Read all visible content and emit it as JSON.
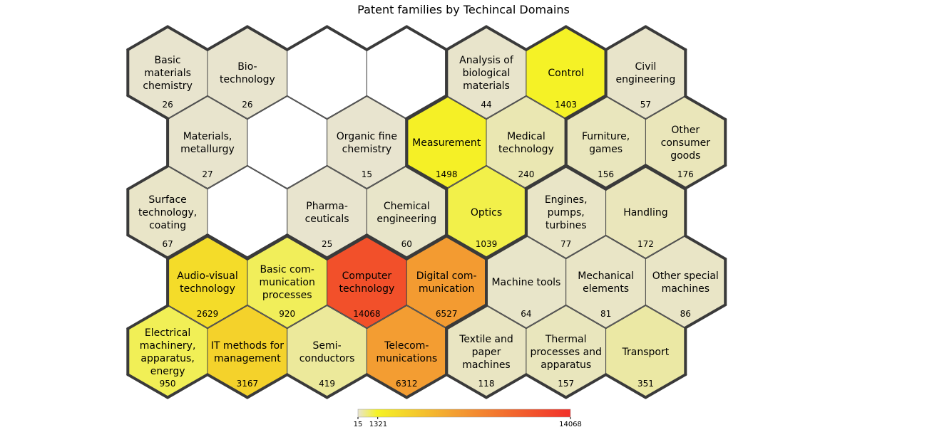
{
  "chart_data": {
    "type": "heatmap",
    "title": "Patent families by Techincal Domains",
    "color_scale": {
      "min": 15,
      "max": 14068,
      "ticks": [
        15,
        1321,
        14068
      ],
      "colors": [
        "#e8e4cf",
        "#f5f326",
        "#f2502a"
      ]
    },
    "cells": [
      {
        "row": 0,
        "col": 0,
        "lines": [
          "Basic",
          "materials",
          "chemistry"
        ],
        "value": 26,
        "group": 1
      },
      {
        "row": 0,
        "col": 1,
        "lines": [
          "Bio-",
          "technology"
        ],
        "value": 26,
        "group": 1
      },
      {
        "row": 0,
        "col": 2,
        "lines": [],
        "value": null,
        "group": 1
      },
      {
        "row": 0,
        "col": 3,
        "lines": [],
        "value": null,
        "group": 1
      },
      {
        "row": 0,
        "col": 4,
        "lines": [
          "Analysis of",
          "biological",
          "materials"
        ],
        "value": 44,
        "group": 2
      },
      {
        "row": 0,
        "col": 5,
        "lines": [
          "Control"
        ],
        "value": 1403,
        "group": 2
      },
      {
        "row": 0,
        "col": 6,
        "lines": [
          "Civil",
          "engineering"
        ],
        "value": 57,
        "group": 5
      },
      {
        "row": 1,
        "col": 0,
        "lines": [
          "Materials,",
          "metallurgy"
        ],
        "value": 27,
        "group": 1
      },
      {
        "row": 1,
        "col": 1,
        "lines": [],
        "value": null,
        "group": 1
      },
      {
        "row": 1,
        "col": 2,
        "lines": [
          "Organic fine",
          "chemistry"
        ],
        "value": 15,
        "group": 1
      },
      {
        "row": 1,
        "col": 3,
        "lines": [
          "Measurement"
        ],
        "value": 1498,
        "group": 2
      },
      {
        "row": 1,
        "col": 4,
        "lines": [
          "Medical",
          "technology"
        ],
        "value": 240,
        "group": 2
      },
      {
        "row": 1,
        "col": 5,
        "lines": [
          "Furniture,",
          "games"
        ],
        "value": 156,
        "group": 5
      },
      {
        "row": 1,
        "col": 6,
        "lines": [
          "Other",
          "consumer",
          "goods"
        ],
        "value": 176,
        "group": 5
      },
      {
        "row": 2,
        "col": 0,
        "lines": [
          "Surface",
          "technology,",
          "coating"
        ],
        "value": 67,
        "group": 1
      },
      {
        "row": 2,
        "col": 1,
        "lines": [],
        "value": null,
        "group": 1
      },
      {
        "row": 2,
        "col": 2,
        "lines": [
          "Pharma-",
          "ceuticals"
        ],
        "value": 25,
        "group": 1
      },
      {
        "row": 2,
        "col": 3,
        "lines": [
          "Chemical",
          "engineering"
        ],
        "value": 60,
        "group": 1
      },
      {
        "row": 2,
        "col": 4,
        "lines": [
          "Optics"
        ],
        "value": 1039,
        "group": 2
      },
      {
        "row": 2,
        "col": 5,
        "lines": [
          "Engines,",
          "pumps,",
          "turbines"
        ],
        "value": 77,
        "group": 4
      },
      {
        "row": 2,
        "col": 6,
        "lines": [
          "Handling"
        ],
        "value": 172,
        "group": 4
      },
      {
        "row": 3,
        "col": 0,
        "lines": [
          "Audio-visual",
          "technology"
        ],
        "value": 2629,
        "group": 3
      },
      {
        "row": 3,
        "col": 1,
        "lines": [
          "Basic com-",
          "munication",
          "processes"
        ],
        "value": 920,
        "group": 3
      },
      {
        "row": 3,
        "col": 2,
        "lines": [
          "Computer",
          "technology"
        ],
        "value": 14068,
        "group": 3
      },
      {
        "row": 3,
        "col": 3,
        "lines": [
          "Digital com-",
          "munication"
        ],
        "value": 6527,
        "group": 3
      },
      {
        "row": 3,
        "col": 4,
        "lines": [
          "Machine tools"
        ],
        "value": 64,
        "group": 4
      },
      {
        "row": 3,
        "col": 5,
        "lines": [
          "Mechanical",
          "elements"
        ],
        "value": 81,
        "group": 4
      },
      {
        "row": 3,
        "col": 6,
        "lines": [
          "Other special",
          "machines"
        ],
        "value": 86,
        "group": 4
      },
      {
        "row": 4,
        "col": 0,
        "lines": [
          "Electrical",
          "machinery,",
          "apparatus,",
          "energy"
        ],
        "value": 950,
        "group": 3
      },
      {
        "row": 4,
        "col": 1,
        "lines": [
          "IT methods for",
          "management"
        ],
        "value": 3167,
        "group": 3
      },
      {
        "row": 4,
        "col": 2,
        "lines": [
          "Semi-",
          "conductors"
        ],
        "value": 419,
        "group": 3
      },
      {
        "row": 4,
        "col": 3,
        "lines": [
          "Telecom-",
          "munications"
        ],
        "value": 6312,
        "group": 3
      },
      {
        "row": 4,
        "col": 4,
        "lines": [
          "Textile and",
          "paper",
          "machines"
        ],
        "value": 118,
        "group": 4
      },
      {
        "row": 4,
        "col": 5,
        "lines": [
          "Thermal",
          "processes and",
          "apparatus"
        ],
        "value": 157,
        "group": 4
      },
      {
        "row": 4,
        "col": 6,
        "lines": [
          "Transport"
        ],
        "value": 351,
        "group": 4
      }
    ]
  }
}
